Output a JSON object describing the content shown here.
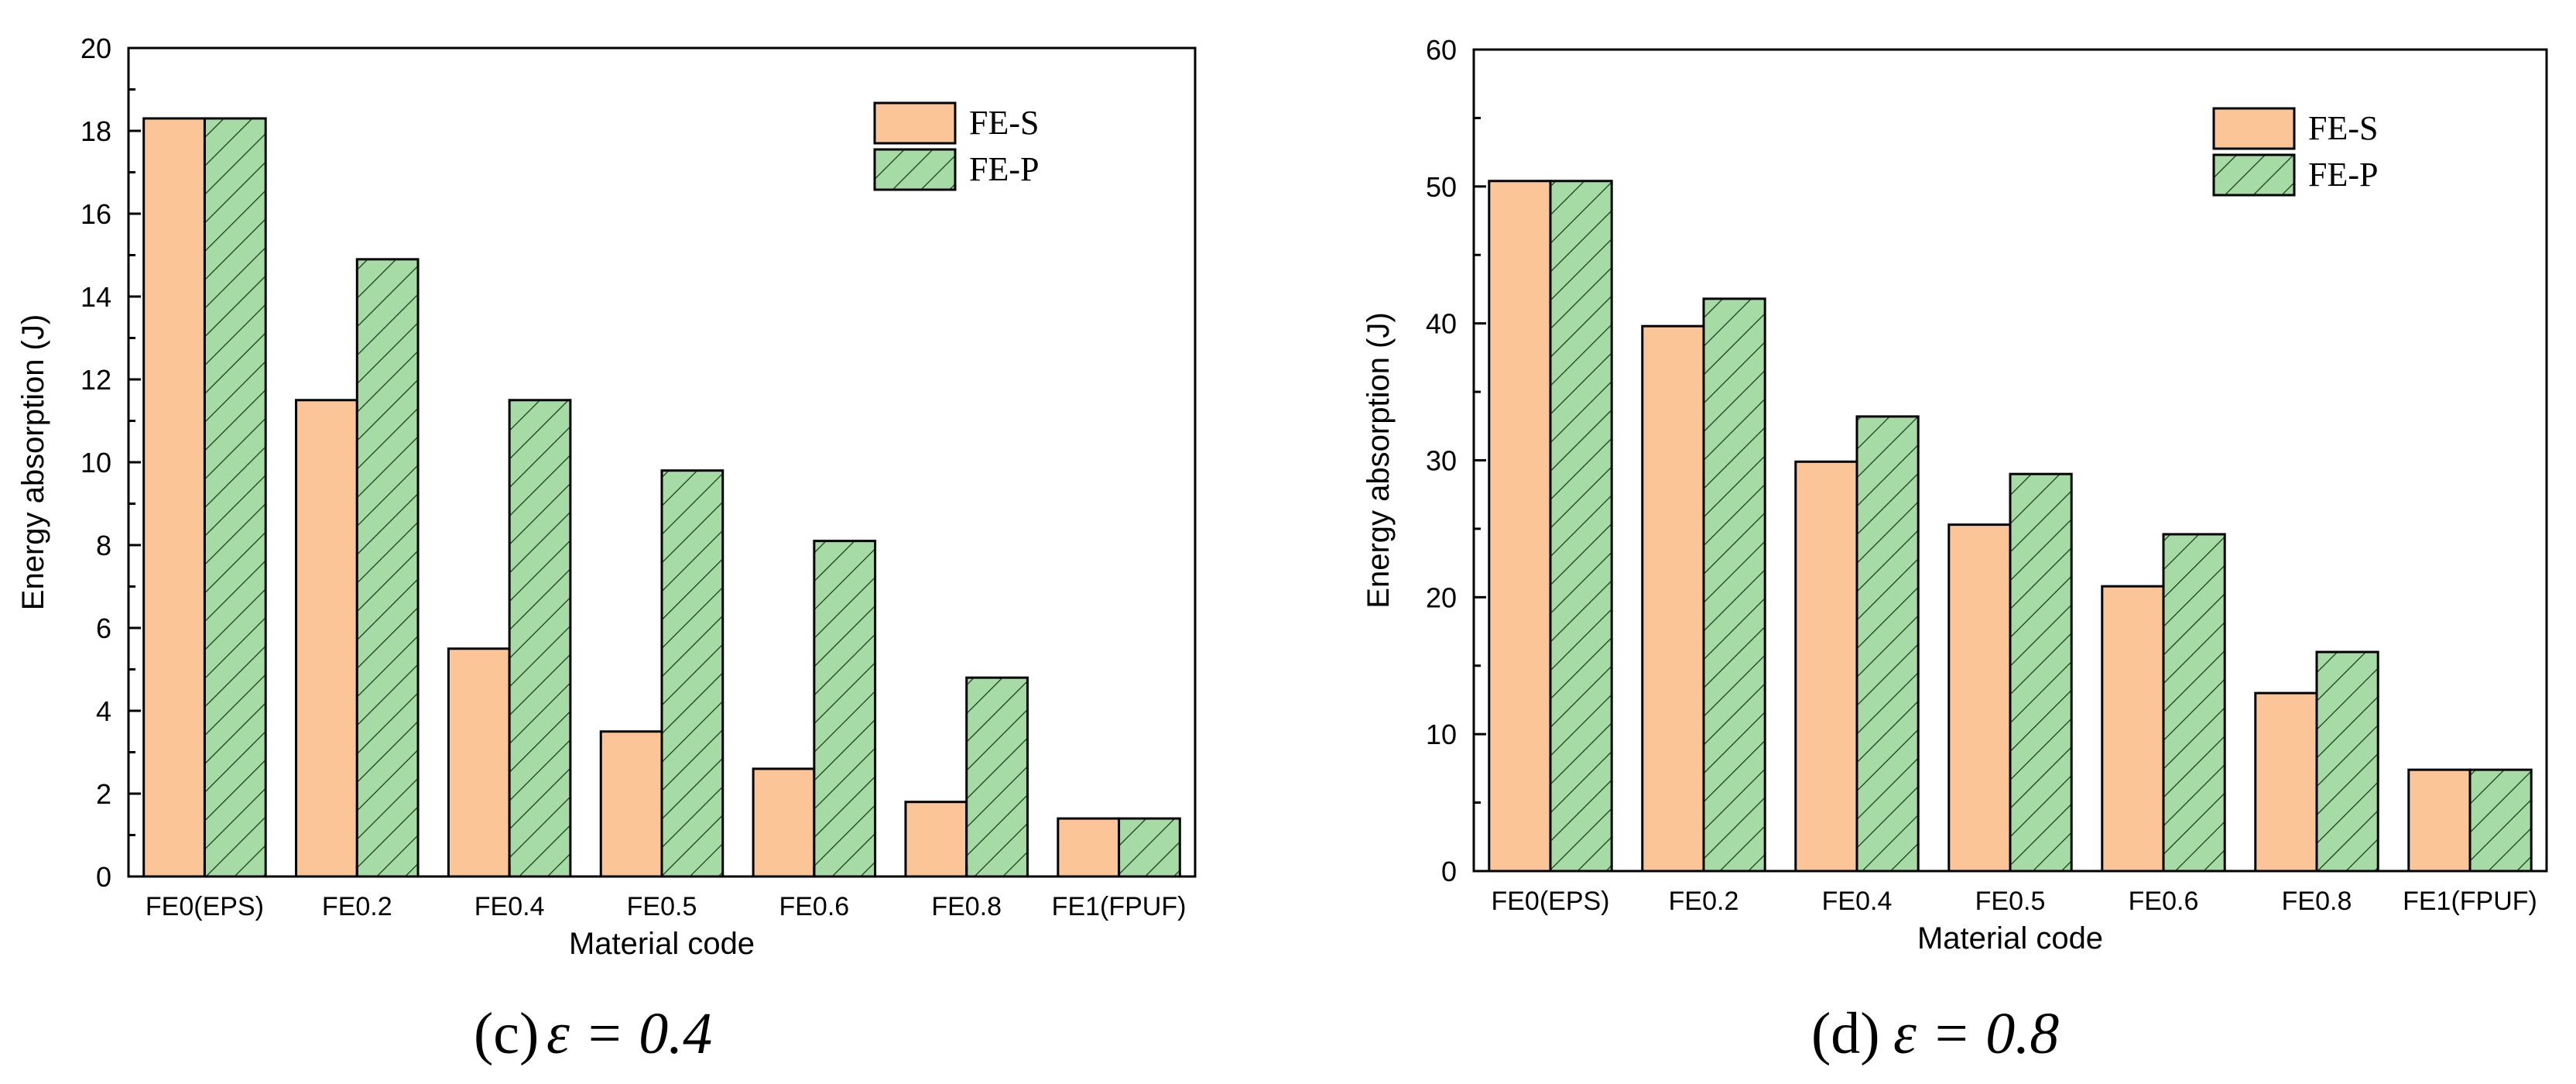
{
  "colors": {
    "fe_s": "#fbc597",
    "fe_p": "#a6dba6",
    "hatch": "#1f3d1f",
    "stroke": "#000000"
  },
  "chart_data": [
    {
      "id": "c",
      "type": "bar",
      "caption": {
        "letter": "(c)",
        "expr": "ε = 0.4"
      },
      "xlabel": "Material code",
      "ylabel": "Energy absorption (J)",
      "ylim": [
        0,
        20
      ],
      "yticks": [
        "0",
        "2",
        "4",
        "6",
        "8",
        "10",
        "12",
        "14",
        "16",
        "18",
        "20"
      ],
      "categories": [
        "FE0(EPS)",
        "FE0.2",
        "FE0.4",
        "FE0.5",
        "FE0.6",
        "FE0.8",
        "FE1(FPUF)"
      ],
      "legend_position": "top-right",
      "series": [
        {
          "name": "FE-S",
          "values": [
            18.3,
            11.5,
            5.5,
            3.5,
            2.6,
            1.8,
            1.4
          ]
        },
        {
          "name": "FE-P",
          "values": [
            18.3,
            14.9,
            11.5,
            9.8,
            8.1,
            4.8,
            1.4
          ]
        }
      ]
    },
    {
      "id": "d",
      "type": "bar",
      "caption": {
        "letter": "(d)",
        "expr": "ε = 0.8"
      },
      "xlabel": "Material code",
      "ylabel": "Energy absorption (J)",
      "ylim": [
        0,
        60
      ],
      "yticks": [
        "0",
        "10",
        "20",
        "30",
        "40",
        "50",
        "60"
      ],
      "categories": [
        "FE0(EPS)",
        "FE0.2",
        "FE0.4",
        "FE0.5",
        "FE0.6",
        "FE0.8",
        "FE1(FPUF)"
      ],
      "legend_position": "top-right",
      "series": [
        {
          "name": "FE-S",
          "values": [
            50.4,
            39.8,
            29.9,
            25.3,
            20.8,
            13.0,
            7.4
          ]
        },
        {
          "name": "FE-P",
          "values": [
            50.4,
            41.8,
            33.2,
            29.0,
            24.6,
            16.0,
            7.4
          ]
        }
      ]
    }
  ]
}
